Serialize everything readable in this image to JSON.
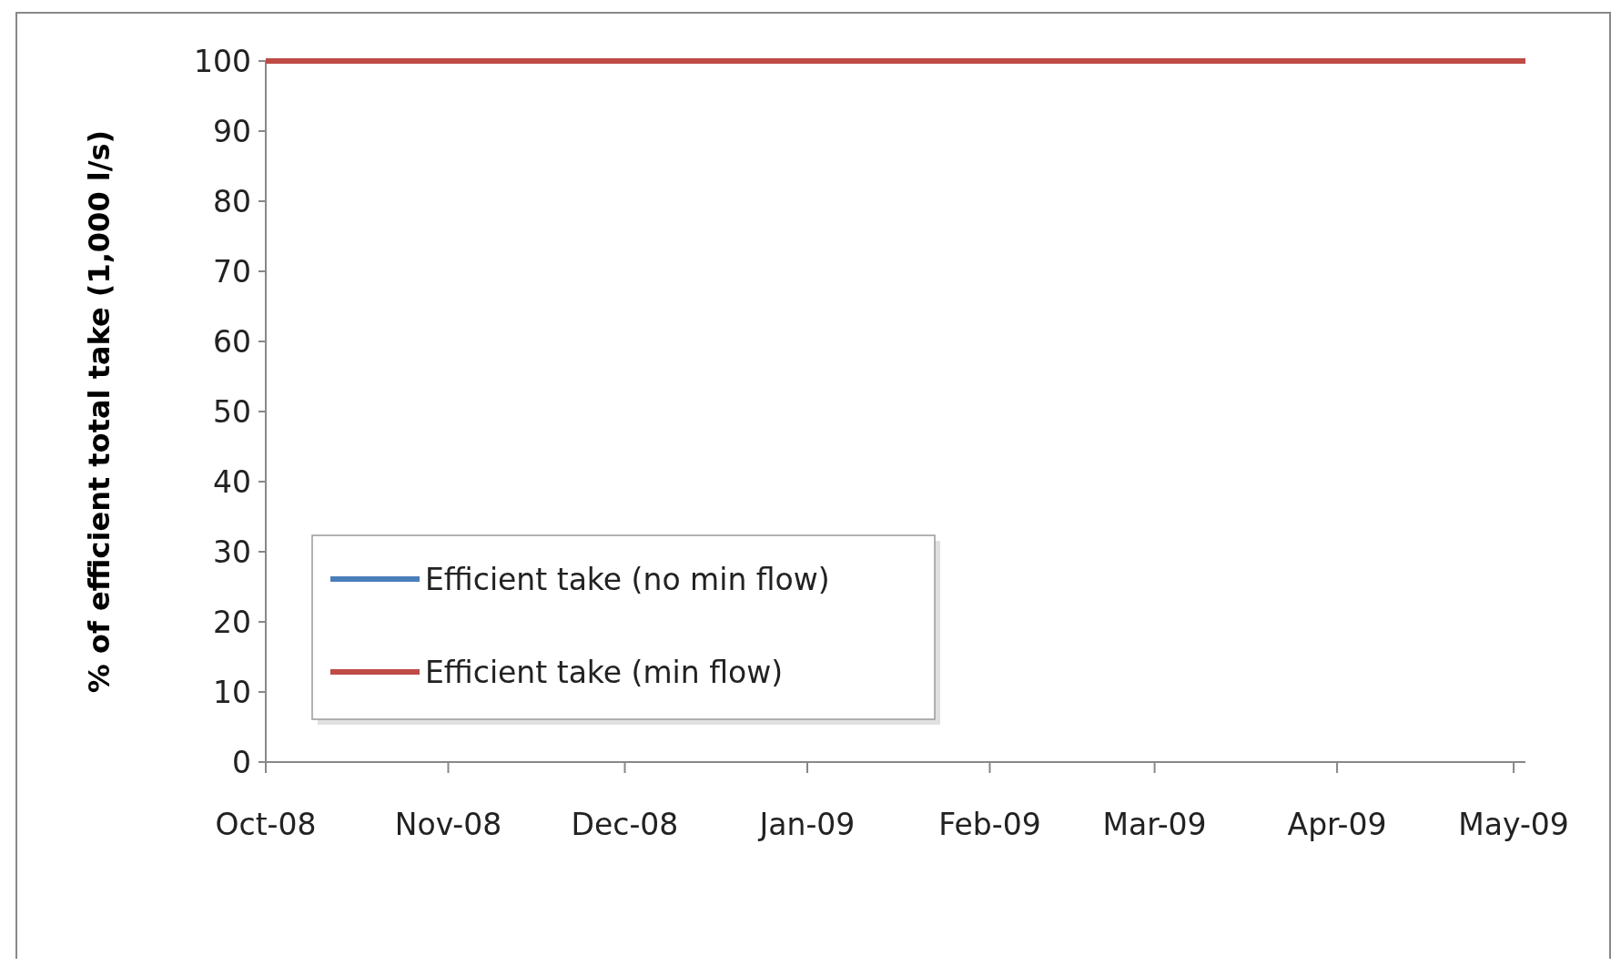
{
  "chart_data": {
    "type": "line",
    "ylabel": "% of efficient total take (1,000 l/s)",
    "x": [
      "2008-10-01",
      "2008-11-01",
      "2008-12-01",
      "2009-01-01",
      "2009-02-01",
      "2009-03-01",
      "2009-04-01",
      "2009-05-03"
    ],
    "series": [
      {
        "name": "Efficient take (no min flow)",
        "color": "#4a7ebb",
        "values": [
          null,
          null,
          null,
          null,
          null,
          null,
          null,
          null
        ]
      },
      {
        "name": "Efficient take (min flow)",
        "color": "#be4b48",
        "values": [
          100,
          100,
          100,
          100,
          100,
          100,
          100,
          100
        ]
      }
    ],
    "xlim": [
      "2008-10-01",
      "2009-05-03"
    ],
    "xticks": [
      {
        "value": "2008-10-01",
        "label": "Oct-08"
      },
      {
        "value": "2008-11-01",
        "label": "Nov-08"
      },
      {
        "value": "2008-12-01",
        "label": "Dec-08"
      },
      {
        "value": "2009-01-01",
        "label": "Jan-09"
      },
      {
        "value": "2009-02-01",
        "label": "Feb-09"
      },
      {
        "value": "2009-03-01",
        "label": "Mar-09"
      },
      {
        "value": "2009-04-01",
        "label": "Apr-09"
      },
      {
        "value": "2009-05-01",
        "label": "May-09"
      }
    ],
    "ylim": [
      0,
      100
    ],
    "yticks": [
      0,
      10,
      20,
      30,
      40,
      50,
      60,
      70,
      80,
      90,
      100
    ],
    "grid": false,
    "legend": "bottom left",
    "marker": "none",
    "line_style": "solid"
  }
}
